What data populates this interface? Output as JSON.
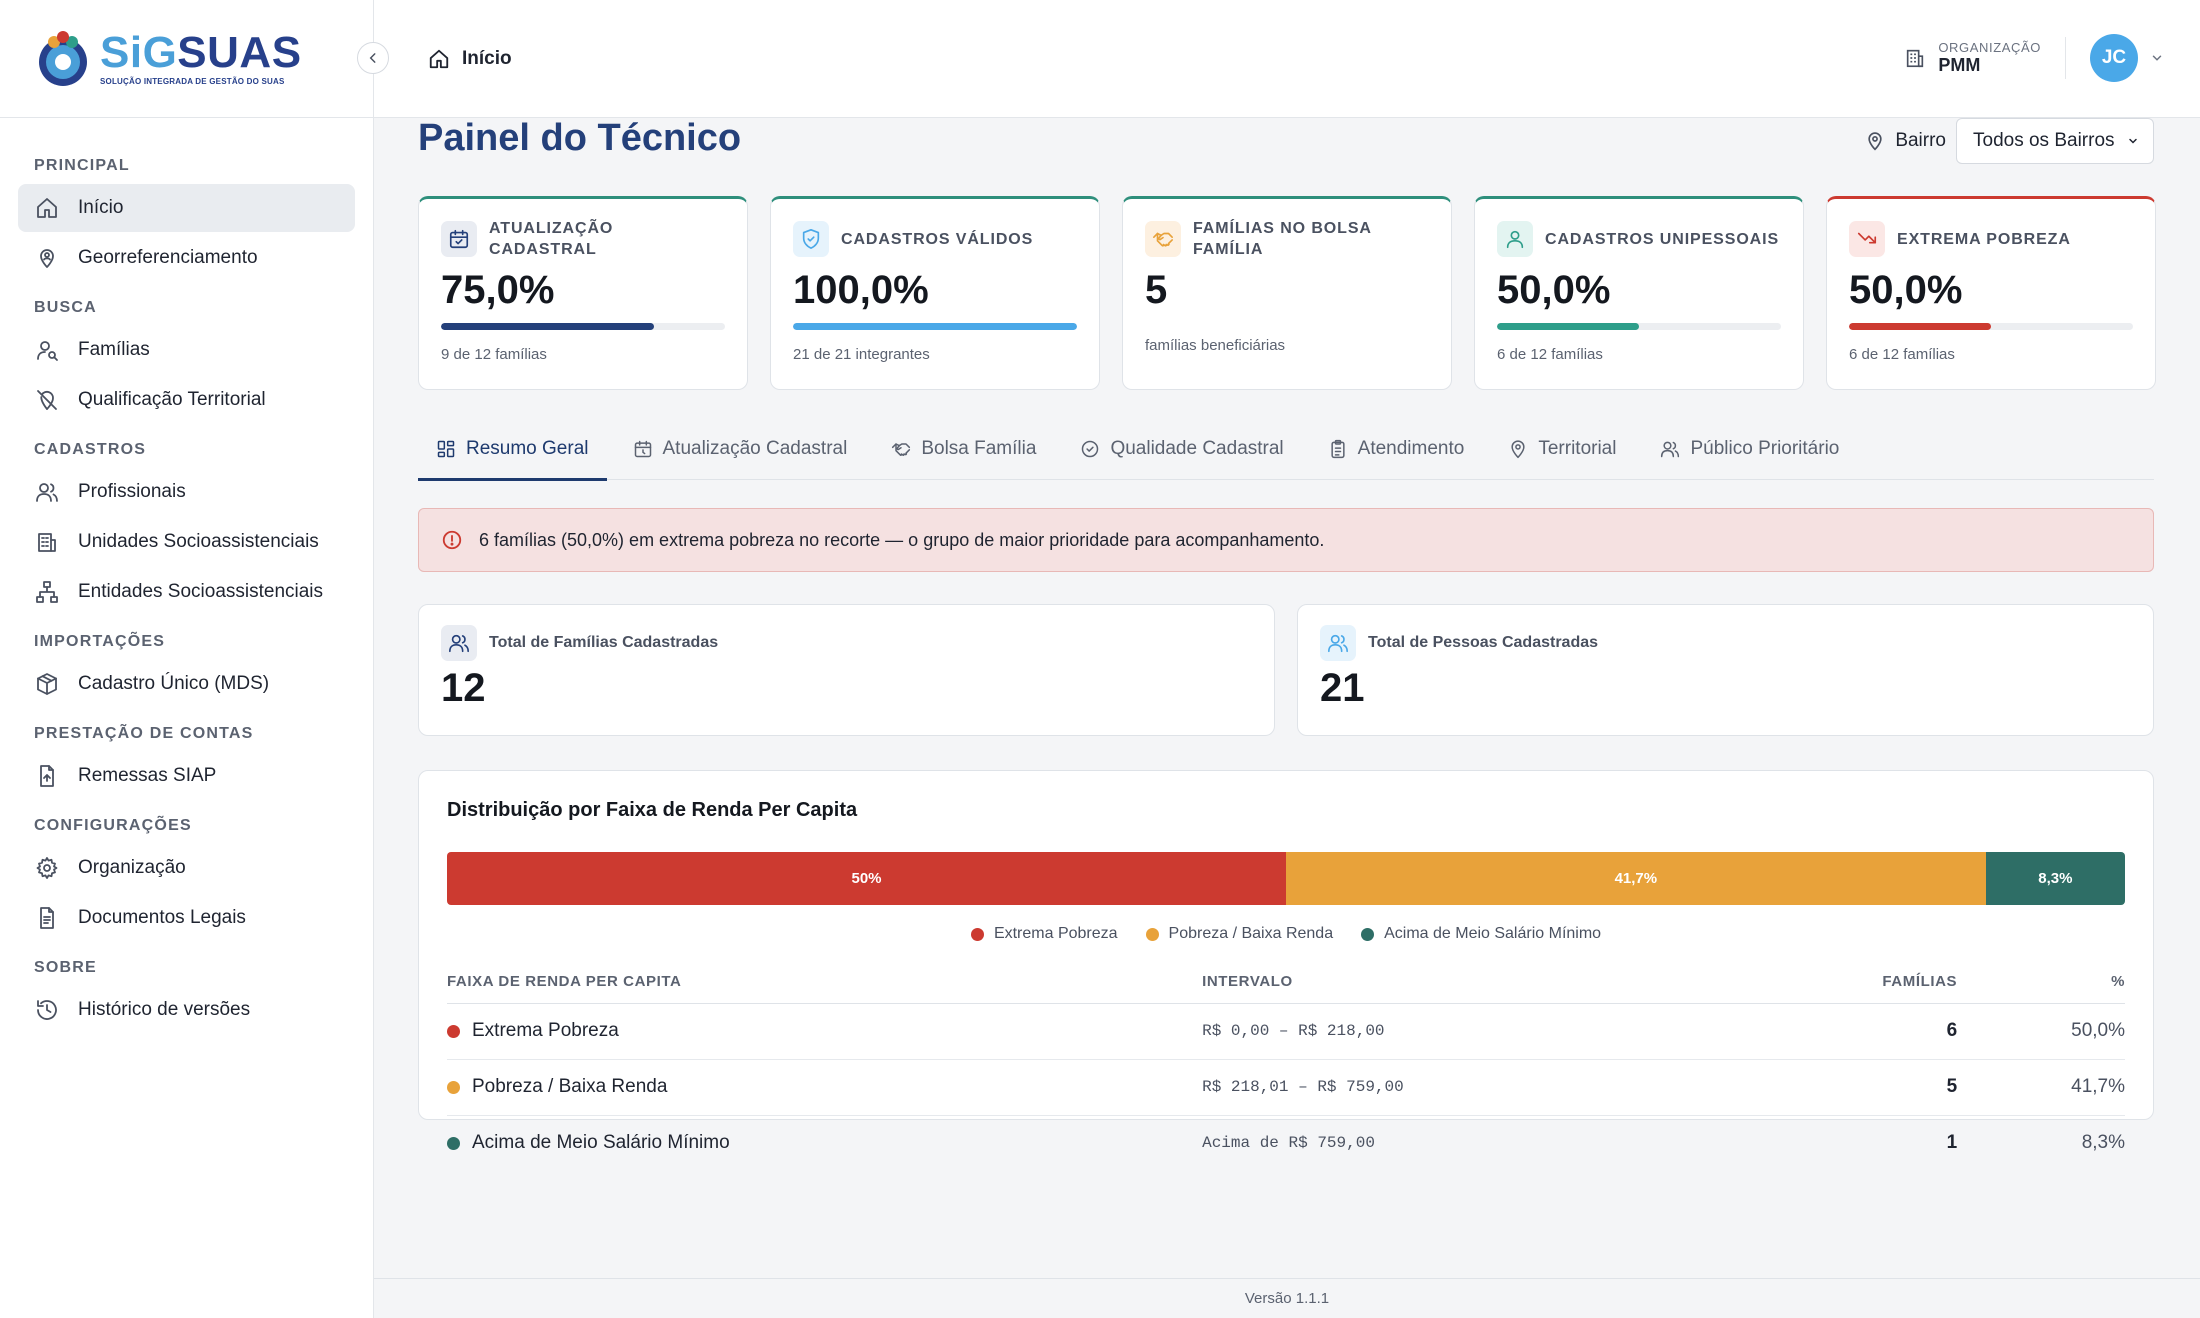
{
  "app": {
    "logo_sig": "SiG",
    "logo_suas": "SUAS",
    "logo_subtitle": "SOLUÇÃO INTEGRADA DE GESTÃO DO SUAS"
  },
  "sidebar": {
    "sections": [
      {
        "title": "PRINCIPAL",
        "items": [
          {
            "label": "Início",
            "icon": "home-icon",
            "active": true
          },
          {
            "label": "Georreferenciamento",
            "icon": "map-pin-user-icon"
          }
        ]
      },
      {
        "title": "BUSCA",
        "items": [
          {
            "label": "Famílias",
            "icon": "user-search-icon"
          },
          {
            "label": "Qualificação Territorial",
            "icon": "map-pin-off-icon"
          }
        ]
      },
      {
        "title": "CADASTROS",
        "items": [
          {
            "label": "Profissionais",
            "icon": "users-icon"
          },
          {
            "label": "Unidades Socioassistenciais",
            "icon": "building-icon"
          },
          {
            "label": "Entidades Socioassistenciais",
            "icon": "network-icon"
          }
        ]
      },
      {
        "title": "IMPORTAÇÕES",
        "items": [
          {
            "label": "Cadastro Único (MDS)",
            "icon": "boxes-icon"
          }
        ]
      },
      {
        "title": "PRESTAÇÃO DE CONTAS",
        "items": [
          {
            "label": "Remessas SIAP",
            "icon": "file-upload-icon"
          }
        ]
      },
      {
        "title": "CONFIGURAÇÕES",
        "items": [
          {
            "label": "Organização",
            "icon": "gear-icon"
          },
          {
            "label": "Documentos Legais",
            "icon": "document-icon"
          }
        ]
      },
      {
        "title": "SOBRE",
        "items": [
          {
            "label": "Histórico de versões",
            "icon": "history-icon"
          }
        ]
      }
    ]
  },
  "header": {
    "breadcrumb": "Início",
    "org_label": "ORGANIZAÇÃO",
    "org_value": "PMM",
    "avatar_initials": "JC"
  },
  "main": {
    "title": "Painel do Técnico",
    "filter_label": "Bairro",
    "filter_value": "Todos os Bairros",
    "kpis": [
      {
        "title": "ATUALIZAÇÃO CADASTRAL",
        "value": "75,0%",
        "progress": 0.75,
        "bar_color": "#24407a",
        "sub": "9 de 12 famílias",
        "icon": "calendar-check-icon",
        "icon_bg": "#e9ecf2",
        "icon_color": "#24407a",
        "accent": "#2e8f7c"
      },
      {
        "title": "CADASTROS VÁLIDOS",
        "value": "100,0%",
        "progress": 1.0,
        "bar_color": "#4aa8e8",
        "sub": "21 de 21 integrantes",
        "icon": "shield-check-icon",
        "icon_bg": "#e6f3fc",
        "icon_color": "#4aa8e8",
        "accent": "#2e8f7c"
      },
      {
        "title": "FAMÍLIAS NO BOLSA FAMÍLIA",
        "value": "5",
        "progress": null,
        "bar_color": "",
        "sub": "famílias beneficiárias",
        "icon": "handshake-icon",
        "icon_bg": "#fdf0e0",
        "icon_color": "#e8a23a",
        "accent": "#2e8f7c"
      },
      {
        "title": "CADASTROS UNIPESSOAIS",
        "value": "50,0%",
        "progress": 0.5,
        "bar_color": "#2e9e8a",
        "sub": "6 de 12 famílias",
        "icon": "user-icon",
        "icon_bg": "#e3f4f1",
        "icon_color": "#2e9e8a",
        "accent": "#2e8f7c"
      },
      {
        "title": "EXTREMA POBREZA",
        "value": "50,0%",
        "progress": 0.5,
        "bar_color": "#cc3a30",
        "sub": "6 de 12 famílias",
        "icon": "trend-down-icon",
        "icon_bg": "#fbe7e5",
        "icon_color": "#cc3a30",
        "accent": "#cc3a30"
      }
    ],
    "tabs": [
      {
        "label": "Resumo Geral",
        "icon": "dashboard-icon",
        "active": true
      },
      {
        "label": "Atualização Cadastral",
        "icon": "calendar-icon"
      },
      {
        "label": "Bolsa Família",
        "icon": "handshake-icon"
      },
      {
        "label": "Qualidade Cadastral",
        "icon": "check-circle-icon"
      },
      {
        "label": "Atendimento",
        "icon": "clipboard-icon"
      },
      {
        "label": "Territorial",
        "icon": "map-pin-icon"
      },
      {
        "label": "Público Prioritário",
        "icon": "users-icon"
      }
    ],
    "alert": "6 famílias (50,0%) em extrema pobreza no recorte — o grupo de maior prioridade para acompanhamento.",
    "totals": [
      {
        "title": "Total de Famílias Cadastradas",
        "value": "12",
        "icon": "users-icon",
        "icon_bg": "#e9ecf2",
        "icon_color": "#24407a"
      },
      {
        "title": "Total de Pessoas Cadastradas",
        "value": "21",
        "icon": "users-icon",
        "icon_bg": "#e6f3fc",
        "icon_color": "#4aa8e8"
      }
    ],
    "distribution": {
      "title": "Distribuição por Faixa de Renda Per Capita",
      "segments": [
        {
          "label": "50%",
          "fraction": 0.5,
          "color": "#cc3a30"
        },
        {
          "label": "41,7%",
          "fraction": 0.417,
          "color": "#e8a23a"
        },
        {
          "label": "8,3%",
          "fraction": 0.083,
          "color": "#2e6e66"
        }
      ],
      "legend": [
        {
          "label": "Extrema Pobreza",
          "color": "#cc3a30"
        },
        {
          "label": "Pobreza / Baixa Renda",
          "color": "#e8a23a"
        },
        {
          "label": "Acima de Meio Salário Mínimo",
          "color": "#2e6e66"
        }
      ],
      "columns": {
        "faixa": "FAIXA DE RENDA PER CAPITA",
        "intervalo": "INTERVALO",
        "familias": "FAMÍLIAS",
        "pct": "%"
      },
      "rows": [
        {
          "faixa": "Extrema Pobreza",
          "color": "#cc3a30",
          "intervalo": "R$ 0,00 – R$ 218,00",
          "familias": "6",
          "pct": "50,0%"
        },
        {
          "faixa": "Pobreza / Baixa Renda",
          "color": "#e8a23a",
          "intervalo": "R$ 218,01 – R$ 759,00",
          "familias": "5",
          "pct": "41,7%"
        },
        {
          "faixa": "Acima de Meio Salário Mínimo",
          "color": "#2e6e66",
          "intervalo": "Acima de R$ 759,00",
          "familias": "1",
          "pct": "8,3%"
        }
      ]
    }
  },
  "footer": {
    "version": "Versão 1.1.1"
  }
}
